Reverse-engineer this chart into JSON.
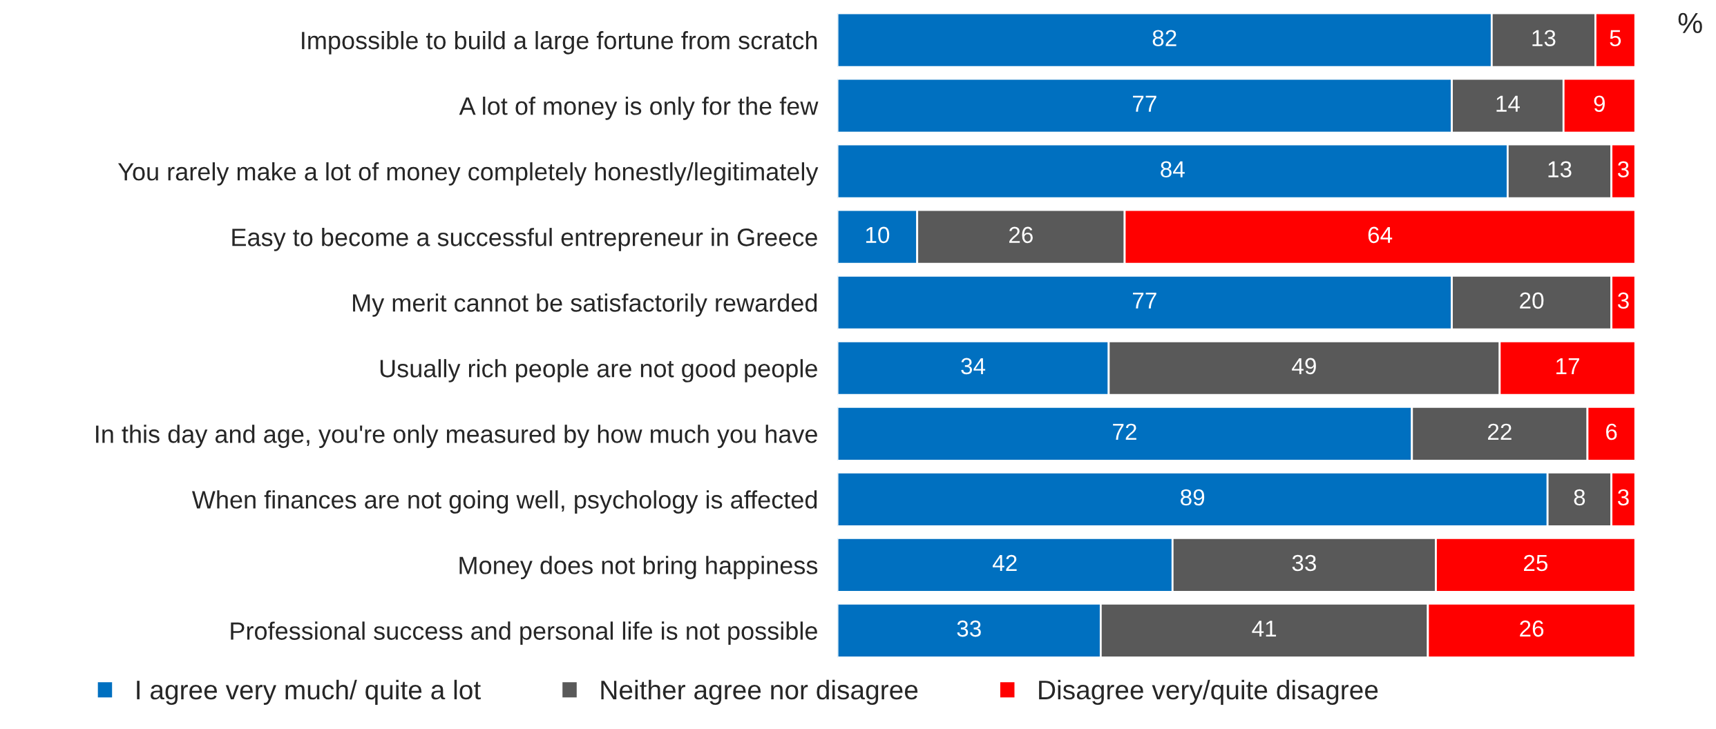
{
  "chart_data": {
    "type": "bar",
    "orientation": "horizontal",
    "stacked": true,
    "data_labels": true,
    "legend": "bottom",
    "grid": false,
    "tick_labels": "y",
    "xlim": [
      0,
      100
    ],
    "categories": [
      "Impossible to build a large fortune from scratch",
      "A lot of money is only for the few",
      "You rarely make a lot of money completely honestly/legitimately",
      "Easy to become a successful entrepreneur in Greece",
      "My merit cannot be satisfactorily rewarded",
      "Usually rich people are not good people",
      "In this day and age, you're only measured by how much you have",
      "When finances are not going well, psychology is affected",
      "Money does not bring happiness",
      "Professional success and personal life is not possible"
    ],
    "series": [
      {
        "name": "I agree very much/ quite a lot",
        "color": "#0070c0",
        "values": [
          82,
          77,
          84,
          10,
          77,
          34,
          72,
          89,
          42,
          33
        ]
      },
      {
        "name": "Neither agree nor disagree",
        "color": "#595959",
        "values": [
          13,
          14,
          13,
          26,
          20,
          49,
          22,
          8,
          33,
          41
        ]
      },
      {
        "name": "Disagree very/quite disagree",
        "color": "#ff0000",
        "values": [
          5,
          9,
          3,
          64,
          3,
          17,
          6,
          3,
          25,
          26
        ]
      }
    ],
    "annotations": [
      "%"
    ]
  }
}
